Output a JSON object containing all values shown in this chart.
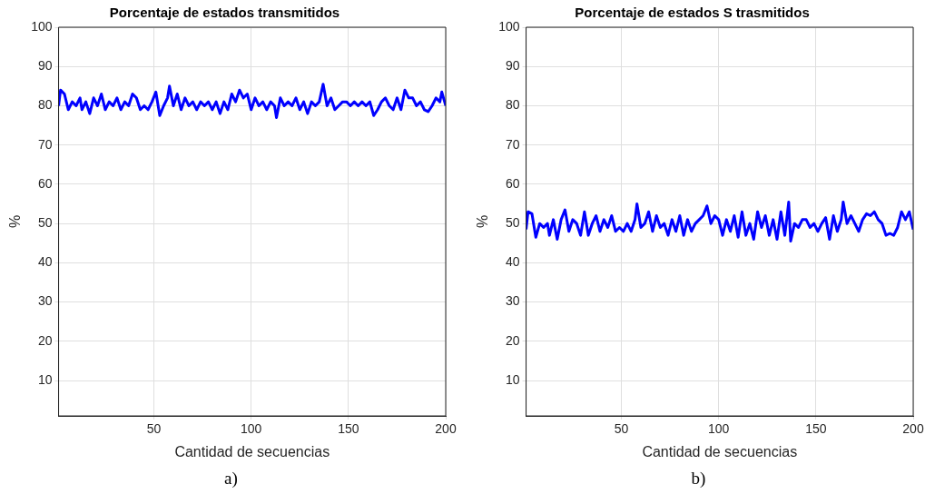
{
  "chart_data": [
    {
      "type": "line",
      "title": "Porcentaje de estados transmitidos",
      "xlabel": "Cantidad de secuencias",
      "ylabel": "%",
      "annotations": [
        "a)"
      ],
      "xlim": [
        1,
        200
      ],
      "xticks": [
        50,
        100,
        150,
        200
      ],
      "ylim": [
        1,
        100
      ],
      "yticks": [
        10,
        20,
        30,
        40,
        50,
        60,
        70,
        80,
        90,
        100
      ],
      "grid": true,
      "legend": false,
      "marker": "none",
      "line_style": "solid",
      "series": [
        {
          "color": "#0000ff",
          "x": [
            1,
            2,
            4,
            6,
            8,
            10,
            12,
            13,
            15,
            17,
            19,
            21,
            23,
            25,
            27,
            29,
            31,
            33,
            35,
            37,
            39,
            41,
            43,
            45,
            47,
            49,
            51,
            53,
            55,
            57,
            58,
            60,
            62,
            64,
            66,
            68,
            70,
            72,
            74,
            76,
            78,
            80,
            82,
            84,
            86,
            88,
            90,
            92,
            94,
            96,
            98,
            100,
            102,
            104,
            106,
            108,
            110,
            112,
            113,
            115,
            117,
            119,
            121,
            123,
            125,
            127,
            129,
            131,
            133,
            135,
            137,
            139,
            141,
            143,
            145,
            147,
            149,
            151,
            153,
            155,
            157,
            159,
            161,
            163,
            165,
            167,
            169,
            171,
            173,
            175,
            177,
            179,
            181,
            183,
            185,
            187,
            189,
            191,
            193,
            195,
            197,
            198,
            200
          ],
          "values": [
            80,
            84,
            83,
            79,
            81,
            80,
            82,
            79,
            81,
            78,
            82,
            80,
            83,
            79,
            81,
            80,
            82,
            79,
            81,
            80,
            83,
            82,
            79,
            80,
            79,
            81,
            83.5,
            77.5,
            80,
            82,
            85,
            80,
            83,
            79,
            82,
            80,
            81,
            79,
            81,
            80,
            81,
            79,
            81,
            78,
            81,
            79,
            83,
            81,
            84,
            82,
            83,
            79,
            82,
            80,
            81,
            79,
            81,
            80,
            77,
            82,
            80,
            81,
            80,
            82,
            79,
            81,
            78,
            81,
            80,
            81,
            85.5,
            80,
            82,
            79,
            80,
            81,
            81,
            80,
            81,
            80,
            81,
            80,
            81,
            77.5,
            79,
            81,
            82,
            80,
            79,
            82,
            79,
            84,
            82,
            82,
            80,
            81,
            79,
            78.5,
            80,
            82,
            81,
            83.5,
            80
          ]
        }
      ]
    },
    {
      "type": "line",
      "title": "Porcentaje de estados S trasmitidos",
      "xlabel": "Cantidad de secuencias",
      "ylabel": "%",
      "annotations": [
        "b)"
      ],
      "xlim": [
        1,
        200
      ],
      "xticks": [
        50,
        100,
        150,
        200
      ],
      "ylim": [
        1,
        100
      ],
      "yticks": [
        10,
        20,
        30,
        40,
        50,
        60,
        70,
        80,
        90,
        100
      ],
      "grid": true,
      "legend": false,
      "marker": "none",
      "line_style": "solid",
      "series": [
        {
          "color": "#0000ff",
          "x": [
            1,
            2,
            4,
            6,
            8,
            10,
            12,
            13,
            15,
            17,
            19,
            21,
            23,
            25,
            27,
            29,
            31,
            33,
            35,
            37,
            39,
            41,
            43,
            45,
            47,
            49,
            51,
            53,
            55,
            57,
            58,
            60,
            62,
            64,
            66,
            68,
            70,
            72,
            74,
            76,
            78,
            80,
            82,
            84,
            86,
            88,
            90,
            92,
            94,
            96,
            98,
            100,
            102,
            104,
            106,
            108,
            110,
            112,
            114,
            116,
            118,
            120,
            122,
            124,
            126,
            128,
            130,
            132,
            134,
            136,
            137,
            139,
            141,
            143,
            145,
            147,
            149,
            151,
            153,
            155,
            157,
            159,
            161,
            163,
            164,
            166,
            168,
            170,
            172,
            174,
            176,
            178,
            180,
            182,
            184,
            186,
            188,
            190,
            192,
            194,
            196,
            198,
            200
          ],
          "values": [
            48.5,
            53,
            52.5,
            46.5,
            50,
            49,
            50,
            47,
            51,
            46,
            51,
            53.5,
            48,
            51,
            50,
            47,
            53,
            47,
            50,
            52,
            48,
            51,
            49,
            52,
            48,
            49,
            48,
            50,
            48,
            51,
            55,
            49,
            50,
            53,
            48,
            52,
            49,
            50,
            47,
            51,
            48,
            52,
            47,
            51,
            48,
            50,
            51,
            52,
            54.5,
            50,
            52,
            51,
            47,
            51,
            48,
            52,
            46.5,
            53,
            47,
            50,
            46,
            53,
            49,
            52,
            47,
            51,
            46,
            53,
            47,
            55.5,
            45.5,
            50,
            49,
            51,
            51,
            49,
            50,
            48,
            50,
            51.5,
            46,
            52,
            48,
            51,
            55.5,
            50,
            52,
            50,
            48,
            51,
            52.5,
            52,
            53,
            51,
            50,
            47,
            47.5,
            47,
            49,
            53,
            51,
            53,
            48.5
          ]
        }
      ]
    }
  ]
}
